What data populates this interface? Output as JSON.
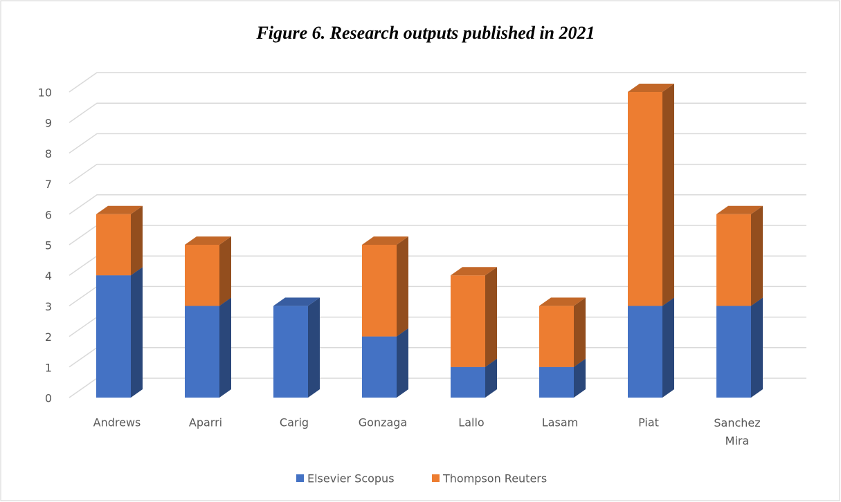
{
  "chart_data": {
    "type": "bar3d_stacked",
    "title": "Figure 6. Research  outputs published in 2021",
    "categories": [
      "Andrews",
      "Aparri",
      "Carig",
      "Gonzaga",
      "Lallo",
      "Lasam",
      "Piat",
      "Sanchez Mira"
    ],
    "series": [
      {
        "name": "Elsevier Scopus",
        "color": "#4472c4",
        "values": [
          4,
          3,
          3,
          2,
          1,
          1,
          3,
          3
        ]
      },
      {
        "name": "Thompson Reuters",
        "color": "#ed7d31",
        "values": [
          2,
          2,
          0,
          3,
          3,
          2,
          7,
          3
        ]
      }
    ],
    "ylim": [
      0,
      10
    ],
    "yticks": [
      0,
      1,
      2,
      3,
      4,
      5,
      6,
      7,
      8,
      9,
      10
    ],
    "grid": true,
    "legend": "bottom"
  }
}
